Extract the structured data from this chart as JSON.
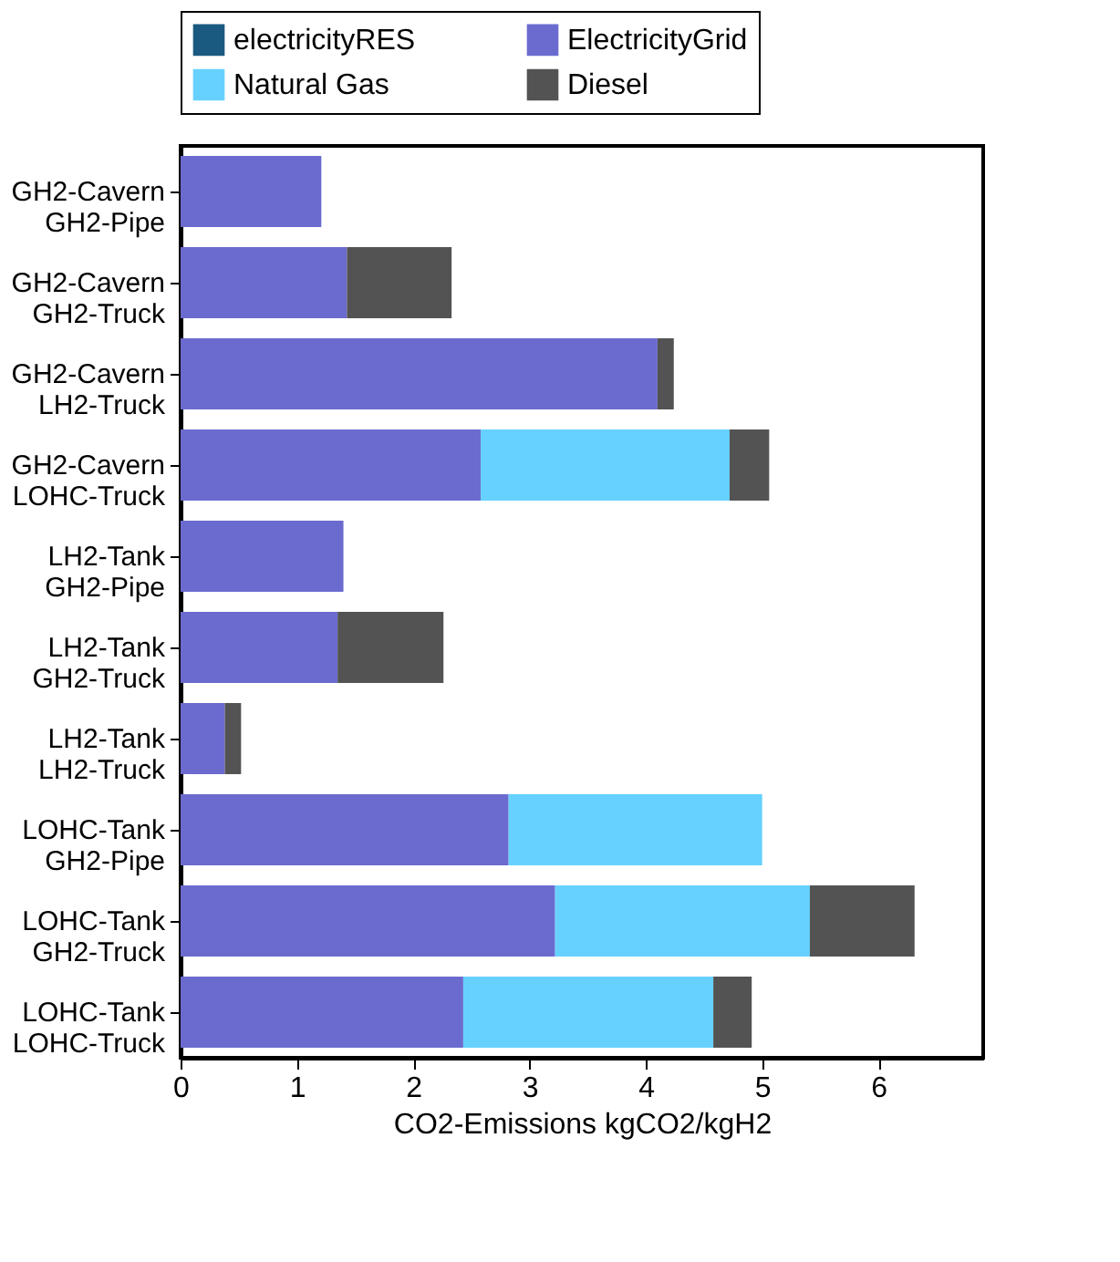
{
  "chart_data": {
    "type": "bar",
    "orientation": "horizontal",
    "stacked": true,
    "categories": [
      "GH2-Cavern\nGH2-Pipe",
      "GH2-Cavern\nGH2-Truck",
      "GH2-Cavern\nLH2-Truck",
      "GH2-Cavern\nLOHC-Truck",
      "LH2-Tank\nGH2-Pipe",
      "LH2-Tank\nGH2-Truck",
      "LH2-Tank\nLH2-Truck",
      "LOHC-Tank\nGH2-Pipe",
      "LOHC-Tank\nGH2-Truck",
      "LOHC-Tank\nLOHC-Truck"
    ],
    "series": [
      {
        "name": "electricityRES",
        "color": "#1a5a80",
        "values": [
          0,
          0,
          0,
          0,
          0,
          0,
          0,
          0,
          0,
          0
        ]
      },
      {
        "name": "ElectricityGrid",
        "color": "#6b6bcf",
        "values": [
          1.21,
          1.43,
          4.1,
          2.58,
          1.4,
          1.35,
          0.38,
          2.82,
          3.22,
          2.43
        ]
      },
      {
        "name": "Natural Gas",
        "color": "#66d1ff",
        "values": [
          0,
          0,
          0,
          2.14,
          0,
          0,
          0,
          2.18,
          2.19,
          2.15
        ]
      },
      {
        "name": "Diesel",
        "color": "#535353",
        "values": [
          0,
          0.9,
          0.14,
          0.34,
          0,
          0.91,
          0.14,
          0,
          0.9,
          0.33
        ]
      }
    ],
    "xlabel": "CO2-Emissions kgCO2/kgH2",
    "xlim": [
      0,
      6.9
    ],
    "xticks": [
      0,
      1,
      2,
      3,
      4,
      5,
      6
    ],
    "grid": false,
    "legend": "top"
  }
}
